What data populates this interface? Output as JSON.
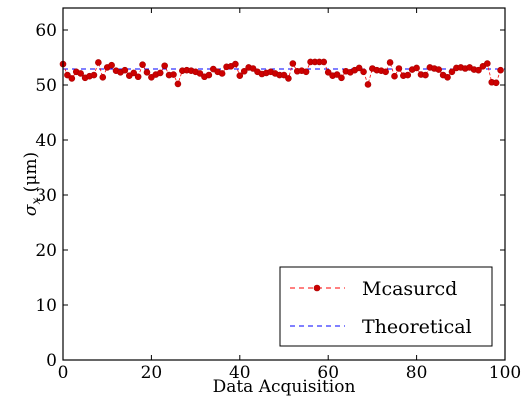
{
  "chart_data": {
    "type": "line",
    "xlabel": "Data Acquisition",
    "ylabel_symbol": "σ",
    "ylabel_subscript": "x",
    "ylabel_unit": " (μm)",
    "xlim": [
      0,
      100
    ],
    "ylim": [
      0,
      64
    ],
    "xticks": [
      "0",
      "20",
      "40",
      "60",
      "80",
      "100"
    ],
    "yticks": [
      "0",
      "10",
      "20",
      "30",
      "40",
      "50",
      "60"
    ],
    "grid": false,
    "legend_position": "bottom-right",
    "series": [
      {
        "name": "Measured",
        "color": "#ff0000",
        "marker_color": "#cc0000",
        "style": "dashed-with-markers",
        "x": [
          0,
          1,
          2,
          3,
          4,
          5,
          6,
          7,
          8,
          9,
          10,
          11,
          12,
          13,
          14,
          15,
          16,
          17,
          18,
          19,
          20,
          21,
          22,
          23,
          24,
          25,
          26,
          27,
          28,
          29,
          30,
          31,
          32,
          33,
          34,
          35,
          36,
          37,
          38,
          39,
          40,
          41,
          42,
          43,
          44,
          45,
          46,
          47,
          48,
          49,
          50,
          51,
          52,
          53,
          54,
          55,
          56,
          57,
          58,
          59,
          60,
          61,
          62,
          63,
          64,
          65,
          66,
          67,
          68,
          69,
          70,
          71,
          72,
          73,
          74,
          75,
          76,
          77,
          78,
          79,
          80,
          81,
          82,
          83,
          84,
          85,
          86,
          87,
          88,
          89,
          90,
          91,
          92,
          93,
          94,
          95,
          96,
          97,
          98,
          99
        ],
        "y": [
          53.8,
          51.8,
          51.2,
          52.4,
          52.1,
          51.3,
          51.6,
          51.8,
          54.1,
          51.4,
          53.2,
          53.6,
          52.6,
          52.3,
          52.7,
          51.7,
          52.2,
          51.5,
          53.7,
          52.3,
          51.4,
          51.9,
          52.2,
          53.5,
          51.8,
          51.9,
          50.2,
          52.6,
          52.7,
          52.6,
          52.4,
          52.1,
          51.5,
          51.8,
          52.9,
          52.4,
          52.1,
          53.3,
          53.4,
          53.8,
          51.7,
          52.5,
          53.2,
          53.0,
          52.4,
          52.0,
          52.2,
          52.4,
          52.1,
          51.8,
          51.8,
          51.2,
          53.9,
          52.5,
          52.6,
          52.4,
          54.2,
          54.2,
          54.2,
          54.2,
          52.3,
          51.7,
          51.9,
          51.3,
          52.5,
          52.3,
          52.7,
          53.1,
          52.4,
          50.1,
          53.0,
          52.7,
          52.6,
          52.4,
          54.1,
          51.6,
          53.0,
          51.7,
          51.8,
          52.8,
          53.1,
          51.9,
          51.8,
          53.2,
          53.0,
          52.8,
          51.8,
          51.4,
          52.4,
          53.1,
          53.2,
          53.0,
          53.2,
          52.8,
          52.7,
          53.4,
          53.9,
          50.5,
          50.4,
          52.7
        ]
      },
      {
        "name": "Theoretical",
        "color": "#0000ff",
        "style": "dashed",
        "x": [
          0,
          100
        ],
        "y": [
          52.9,
          52.9
        ]
      }
    ]
  },
  "legend": {
    "measured_label": "Mcasurcd",
    "theoretical_label": "Theoretical"
  }
}
